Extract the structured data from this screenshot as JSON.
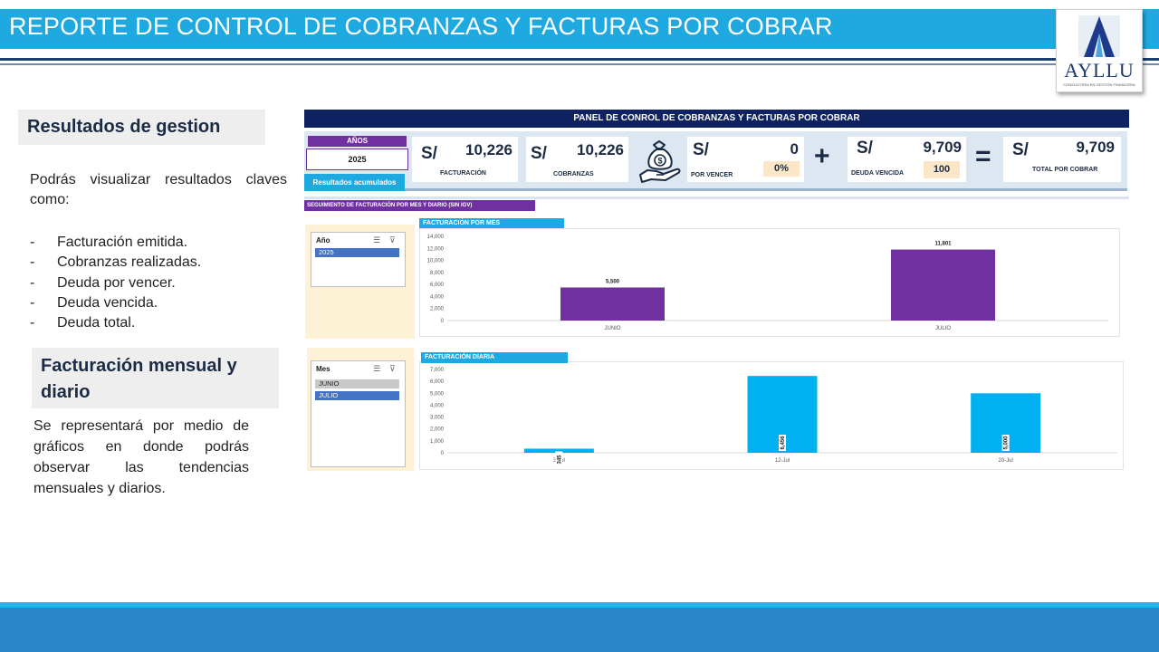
{
  "header": {
    "title": "REPORTE DE CONTROL DE COBRANZAS Y FACTURAS POR COBRAR",
    "logo_text": "AYLLU",
    "logo_subtext": "CONSULTORÍA EN GESTIÓN FINANCIERA"
  },
  "left": {
    "section1_title": "Resultados de gestion",
    "section1_text": "Podrás visualizar resultados claves como:",
    "bullets": [
      "Facturación emitida.",
      "Cobranzas realizadas.",
      "Deuda por vencer.",
      "Deuda vencida.",
      "Deuda total."
    ],
    "bullet_marker": "-",
    "section2_title": "Facturación mensual y diario",
    "section2_text": "Se representará por medio de gráficos en donde podrás observar las tendencias mensuales y diarios."
  },
  "dashboard": {
    "title": "PANEL DE CONROL DE COBRANZAS Y FACTURAS POR COBRAR",
    "years_label": "AÑOS",
    "years_value": "2025",
    "accum_button": "Resultados acumulados",
    "currency": "S/",
    "kpis": {
      "facturacion": {
        "value": "10,226",
        "label": "FACTURACIÓN"
      },
      "cobranzas": {
        "value": "10,226",
        "label": "COBRANZAS"
      },
      "por_vencer": {
        "value": "0",
        "label": "POR VENCER",
        "badge": "0%"
      },
      "deuda_vencida": {
        "value": "9,709",
        "label": "DEUDA VENCIDA",
        "badge": "100"
      },
      "total": {
        "value": "9,709",
        "label": "TOTAL POR COBRAR"
      }
    },
    "op_plus": "+",
    "op_equals": "=",
    "tracking_label": "SEGUIMIENTO DE FACTURACIÓN POR MES Y DIARIO (SIN IGV)",
    "slicer_year": {
      "title": "Año",
      "items": [
        "2025"
      ]
    },
    "slicer_month": {
      "title": "Mes",
      "items": [
        "JUNIO",
        "JULIO"
      ]
    }
  },
  "chart_data": [
    {
      "type": "bar",
      "title": "FACTURACIÓN POR MES",
      "categories": [
        "JUNIO",
        "JULIO"
      ],
      "values": [
        5500,
        11801
      ],
      "value_labels": [
        "5,500",
        "11,801"
      ],
      "ylim": [
        0,
        14000
      ],
      "yticks": [
        "0",
        "2,000",
        "4,000",
        "6,000",
        "8,000",
        "10,000",
        "12,000",
        "14,000"
      ],
      "color": "#7030a0"
    },
    {
      "type": "bar",
      "title": "FACTURACIÓN DIARIA",
      "categories": [
        "3-Jul",
        "12-Jul",
        "20-Jul"
      ],
      "values": [
        345,
        6456,
        5000
      ],
      "value_labels": [
        "345",
        "6,456",
        "5,000"
      ],
      "ylim": [
        0,
        7000
      ],
      "yticks": [
        "0",
        "1,000",
        "2,000",
        "3,000",
        "4,000",
        "5,000",
        "6,000",
        "7,000"
      ],
      "color": "#00b0f0"
    }
  ]
}
